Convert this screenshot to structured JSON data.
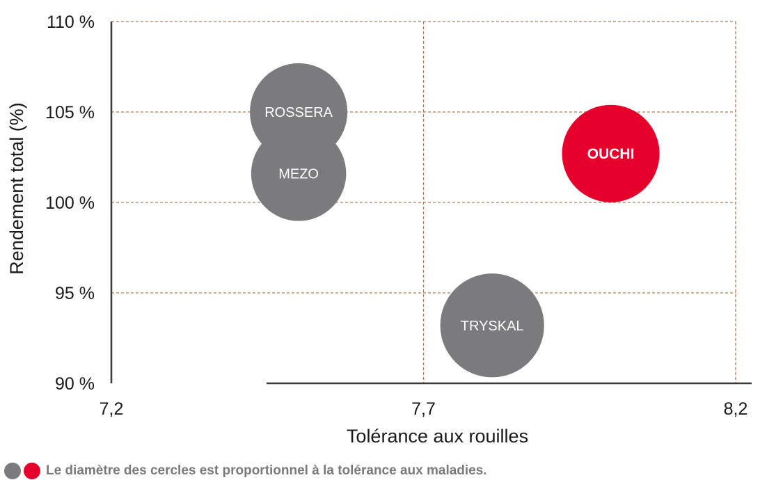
{
  "chart_data": {
    "type": "bubble",
    "title": "",
    "xlabel": "Tolérance aux rouilles",
    "ylabel": "Rendement total (%)",
    "xlim": [
      7.2,
      8.2
    ],
    "ylim": [
      90,
      110
    ],
    "x_ticks": [
      "7,2",
      "7,7",
      "8,2"
    ],
    "y_ticks": [
      "90 %",
      "95 %",
      "100 %",
      "105 %",
      "110 %"
    ],
    "grid": true,
    "points": [
      {
        "label": "ROSSERA",
        "x": 7.5,
        "y": 105.0,
        "size": 7.7,
        "color": "#7b7a7d",
        "bold": false
      },
      {
        "label": "MEZO",
        "x": 7.5,
        "y": 101.6,
        "size": 7.5,
        "color": "#7b7a7d",
        "bold": false
      },
      {
        "label": "OUCHI",
        "x": 8.0,
        "y": 102.7,
        "size": 7.7,
        "color": "#e4002b",
        "bold": true
      },
      {
        "label": "TRYSKAL",
        "x": 7.81,
        "y": 93.2,
        "size": 8.2,
        "color": "#7b7a7d",
        "bold": false
      }
    ],
    "note": "Le diamètre des cercles est proportionnel à la tolérance aux maladies."
  },
  "colors": {
    "grey": "#7b7a7d",
    "red": "#e4002b",
    "grid": "#a77a55",
    "axis": "#3a3a3a"
  }
}
